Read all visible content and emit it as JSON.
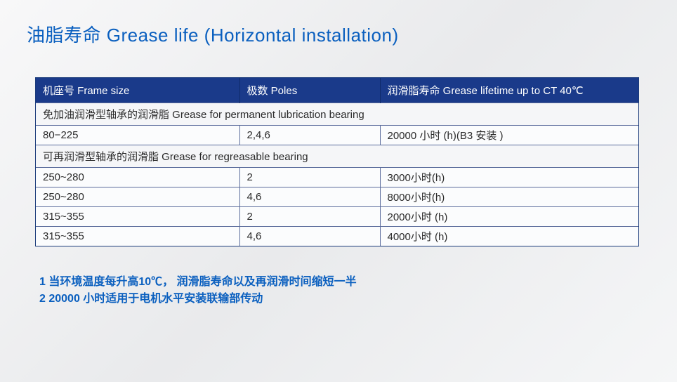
{
  "title": "油脂寿命 Grease life (Horizontal installation)",
  "table": {
    "columns": [
      "机座号 Frame size",
      "极数  Poles",
      "润滑脂寿命 Grease lifetime up to CT 40℃"
    ],
    "section1_label": "免加油润滑型轴承的润滑脂 Grease for permanent lubrication bearing",
    "section1_rows": [
      {
        "frame": "80−225",
        "poles": " 2,4,6",
        "life": "20000 小时 (h)(B3 安装 )"
      }
    ],
    "section2_label": "可再润滑型轴承的润滑脂 Grease for regreasable bearing",
    "section2_rows": [
      {
        "frame": "250~280",
        "poles": "2",
        "life": "3000小时(h)"
      },
      {
        "frame": "250~280",
        "poles": "4,6",
        "life": "8000小时(h)"
      },
      {
        "frame": "315~355",
        "poles": "2",
        "life": "2000小时 (h)"
      },
      {
        "frame": "315~355",
        "poles": "4,6",
        "life": "4000小时 (h)"
      }
    ]
  },
  "notes": {
    "line1": "1 当环境温度每升高10℃， 润滑脂寿命以及再润滑时间缩短一半",
    "line2": "2 20000 小时适用于电机水平安装联输部传动"
  },
  "style": {
    "title_color": "#0a5fbf",
    "header_bg": "#1a3a8a",
    "header_fg": "#ffffff",
    "border_color": "#5b6c9c",
    "notes_color": "#0a5fbf",
    "title_fontsize": 26,
    "body_fontsize": 15,
    "notes_fontsize": 16
  }
}
